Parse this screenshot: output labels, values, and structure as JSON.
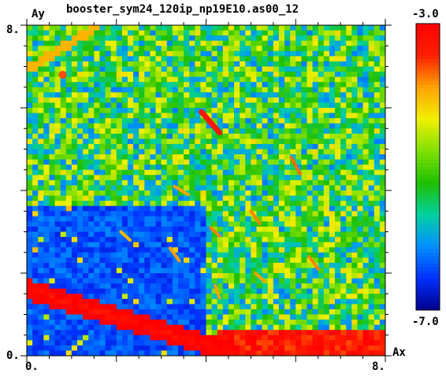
{
  "chart_data": {
    "type": "heatmap",
    "title": "booster_sym24_120ip_np19E10.as00_12",
    "xlabel": "Ax",
    "ylabel": "Ay",
    "xlim": [
      0,
      8
    ],
    "ylim": [
      0,
      8
    ],
    "x_tick_labels": [
      "0.",
      "8."
    ],
    "y_tick_labels": [
      "0.",
      "8."
    ],
    "colorbar": {
      "range": [
        -7.0,
        -3.0
      ],
      "tick_labels": [
        "-3.0",
        "-7.0"
      ],
      "colors": [
        "#00008c",
        "#0030ff",
        "#0090ff",
        "#00d0a0",
        "#20c000",
        "#80e000",
        "#f0f000",
        "#ffa000",
        "#ff2000",
        "#ff0000"
      ]
    },
    "structure": {
      "background_value": -5.4,
      "low_amplitude_region": {
        "ax_max": 4.0,
        "ay_max": 3.6,
        "value": -6.4
      },
      "noisy_field_value_range": [
        -6.2,
        -4.2
      ],
      "high_diffusion_band": {
        "ay_max": 0.6,
        "ax_min": 4.2,
        "value": -3.3
      },
      "diagonal_band": {
        "from": [
          0.0,
          1.6
        ],
        "to": [
          4.5,
          0.1
        ],
        "value": -3.2
      },
      "upper_left_line": {
        "from": [
          0.0,
          6.9
        ],
        "to": [
          1.6,
          8.0
        ],
        "value": -4.0
      },
      "hot_spot": {
        "ax": 0.8,
        "ay": 6.8,
        "value": -3.6
      },
      "resonance_streaks": [
        {
          "from": [
            3.9,
            5.9
          ],
          "to": [
            4.3,
            5.4
          ],
          "value": -3.3
        },
        {
          "from": [
            5.9,
            4.8
          ],
          "to": [
            6.1,
            4.4
          ],
          "value": -3.7
        },
        {
          "from": [
            5.0,
            3.5
          ],
          "to": [
            5.2,
            3.2
          ],
          "value": -3.8
        },
        {
          "from": [
            6.3,
            2.4
          ],
          "to": [
            6.5,
            2.1
          ],
          "value": -3.8
        },
        {
          "from": [
            3.3,
            4.1
          ],
          "to": [
            3.6,
            3.9
          ],
          "value": -3.9
        },
        {
          "from": [
            2.1,
            3.0
          ],
          "to": [
            2.3,
            2.8
          ],
          "value": -4.0
        },
        {
          "from": [
            4.1,
            3.1
          ],
          "to": [
            4.3,
            2.9
          ],
          "value": -3.8
        },
        {
          "from": [
            4.2,
            1.7
          ],
          "to": [
            4.3,
            1.4
          ],
          "value": -3.9
        },
        {
          "from": [
            3.2,
            2.6
          ],
          "to": [
            3.4,
            2.3
          ],
          "value": -3.9
        },
        {
          "from": [
            5.1,
            2.0
          ],
          "to": [
            5.3,
            1.8
          ],
          "value": -3.9
        }
      ]
    }
  }
}
